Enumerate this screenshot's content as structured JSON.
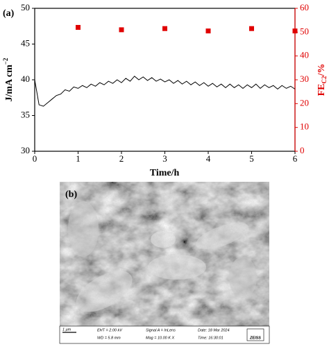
{
  "chart_data": {
    "type": "line",
    "panel_label": "(a)",
    "xlabel": "Time/h",
    "ylabel": {
      "main": "J/mA cm",
      "sup": "−2"
    },
    "y2label": {
      "main": "FE",
      "sub": "C2",
      "rest": "/%"
    },
    "xlim": [
      0,
      6
    ],
    "xticks": [
      0,
      1,
      2,
      3,
      4,
      5,
      6
    ],
    "ylim": [
      30,
      50
    ],
    "yticks": [
      30,
      35,
      40,
      45,
      50
    ],
    "y2lim": [
      0,
      60
    ],
    "y2ticks": [
      0,
      10,
      20,
      30,
      40,
      50,
      60
    ],
    "y2color": "#e00000",
    "series": [
      {
        "type": "line",
        "color": "#000000",
        "x": [
          0,
          0.1,
          0.2,
          0.3,
          0.4,
          0.5,
          0.6,
          0.7,
          0.8,
          0.9,
          1.0,
          1.1,
          1.2,
          1.3,
          1.4,
          1.5,
          1.6,
          1.7,
          1.8,
          1.9,
          2.0,
          2.1,
          2.2,
          2.3,
          2.4,
          2.5,
          2.6,
          2.7,
          2.8,
          2.9,
          3.0,
          3.1,
          3.2,
          3.3,
          3.4,
          3.5,
          3.6,
          3.7,
          3.8,
          3.9,
          4.0,
          4.1,
          4.2,
          4.3,
          4.4,
          4.5,
          4.6,
          4.7,
          4.8,
          4.9,
          5.0,
          5.1,
          5.2,
          5.3,
          5.4,
          5.5,
          5.6,
          5.7,
          5.8,
          5.9,
          6.0
        ],
        "values": [
          40.0,
          36.5,
          36.3,
          36.8,
          37.3,
          37.8,
          38.0,
          38.6,
          38.4,
          39.0,
          38.8,
          39.2,
          38.9,
          39.4,
          39.1,
          39.6,
          39.3,
          39.8,
          39.5,
          40.0,
          39.6,
          40.2,
          39.8,
          40.5,
          40.0,
          40.4,
          39.9,
          40.3,
          39.8,
          40.1,
          39.7,
          40.0,
          39.5,
          39.9,
          39.4,
          39.8,
          39.3,
          39.7,
          39.2,
          39.6,
          39.1,
          39.5,
          39.0,
          39.4,
          38.9,
          39.4,
          38.9,
          39.3,
          38.8,
          39.3,
          38.9,
          39.4,
          38.8,
          39.3,
          38.9,
          39.2,
          38.7,
          39.2,
          38.8,
          39.1,
          38.7
        ]
      },
      {
        "type": "scatter",
        "axis": "y2",
        "color": "#e00000",
        "x": [
          1,
          2,
          3,
          4,
          5,
          6
        ],
        "values": [
          52,
          51,
          51.5,
          50.5,
          51.5,
          50.5
        ]
      }
    ]
  },
  "sem_panel": {
    "panel_label": "(b)",
    "scale": "1 μm",
    "info": [
      "EHT = 2.00 kV",
      "WD = 5.8 mm",
      "Signal A = InLens",
      "Mag = 10.00 K X",
      "Date: 18 Mar 2024",
      "Time: 16:30:01"
    ],
    "brand": "ZEISS"
  }
}
